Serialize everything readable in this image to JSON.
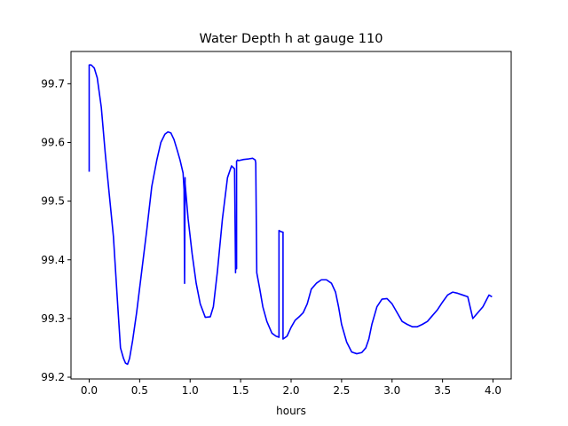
{
  "chart_data": {
    "type": "line",
    "title": "Water Depth h at gauge 110",
    "xlabel": "hours",
    "ylabel": "",
    "xlim": [
      -0.18,
      4.18
    ],
    "ylim": [
      99.197,
      99.755
    ],
    "x_ticks": [
      0.0,
      0.5,
      1.0,
      1.5,
      2.0,
      2.5,
      3.0,
      3.5,
      4.0
    ],
    "x_tick_labels": [
      "0.0",
      "0.5",
      "1.0",
      "1.5",
      "2.0",
      "2.5",
      "3.0",
      "3.5",
      "4.0"
    ],
    "y_ticks": [
      99.2,
      99.3,
      99.4,
      99.5,
      99.6,
      99.7
    ],
    "y_tick_labels": [
      "99.2",
      "99.3",
      "99.4",
      "99.5",
      "99.6",
      "99.7"
    ],
    "grid": false,
    "legend": "none",
    "series": [
      {
        "color": "#0000ff",
        "x": [
          0.0,
          0.0,
          0.02,
          0.05,
          0.08,
          0.12,
          0.16,
          0.2,
          0.24,
          0.28,
          0.31,
          0.34,
          0.36,
          0.38,
          0.4,
          0.43,
          0.47,
          0.52,
          0.57,
          0.62,
          0.67,
          0.71,
          0.75,
          0.78,
          0.81,
          0.84,
          0.87,
          0.9,
          0.93,
          0.94,
          0.945,
          0.945,
          0.95,
          0.95,
          0.98,
          1.02,
          1.06,
          1.1,
          1.15,
          1.2,
          1.23,
          1.27,
          1.32,
          1.37,
          1.41,
          1.44,
          1.45,
          1.45,
          1.46,
          1.46,
          1.47,
          1.48,
          1.53,
          1.58,
          1.62,
          1.645,
          1.65,
          1.66,
          1.69,
          1.72,
          1.76,
          1.81,
          1.85,
          1.88,
          1.88,
          1.9,
          1.92,
          1.92,
          1.96,
          2.0,
          2.04,
          2.08,
          2.12,
          2.16,
          2.2,
          2.25,
          2.3,
          2.35,
          2.4,
          2.44,
          2.47,
          2.5,
          2.55,
          2.6,
          2.65,
          2.7,
          2.74,
          2.77,
          2.8,
          2.85,
          2.9,
          2.95,
          3.0,
          3.05,
          3.1,
          3.15,
          3.2,
          3.25,
          3.3,
          3.35,
          3.4,
          3.45,
          3.5,
          3.55,
          3.6,
          3.65,
          3.7,
          3.75,
          3.8,
          3.85,
          3.9,
          3.93,
          3.96,
          3.99
        ],
        "y": [
          99.55,
          99.732,
          99.732,
          99.727,
          99.71,
          99.66,
          99.58,
          99.51,
          99.44,
          99.33,
          99.25,
          99.232,
          99.224,
          99.222,
          99.232,
          99.262,
          99.31,
          99.38,
          99.45,
          99.525,
          99.57,
          99.6,
          99.614,
          99.618,
          99.616,
          99.605,
          99.588,
          99.57,
          99.548,
          99.52,
          99.365,
          99.36,
          99.54,
          99.53,
          99.47,
          99.41,
          99.36,
          99.325,
          99.302,
          99.303,
          99.32,
          99.38,
          99.47,
          99.54,
          99.56,
          99.555,
          99.378,
          99.385,
          99.385,
          99.568,
          99.57,
          99.569,
          99.571,
          99.572,
          99.573,
          99.57,
          99.565,
          99.378,
          99.35,
          99.32,
          99.295,
          99.275,
          99.27,
          99.268,
          99.45,
          99.448,
          99.447,
          99.265,
          99.27,
          99.285,
          99.297,
          99.303,
          99.31,
          99.325,
          99.35,
          99.36,
          99.366,
          99.366,
          99.36,
          99.345,
          99.32,
          99.29,
          99.26,
          99.243,
          99.24,
          99.242,
          99.25,
          99.265,
          99.29,
          99.32,
          99.333,
          99.334,
          99.325,
          99.31,
          99.295,
          99.29,
          99.286,
          99.286,
          99.29,
          99.295,
          99.305,
          99.315,
          99.328,
          99.34,
          99.345,
          99.343,
          99.34,
          99.337,
          99.3,
          99.31,
          99.32,
          99.33,
          99.34,
          99.337
        ]
      }
    ]
  }
}
